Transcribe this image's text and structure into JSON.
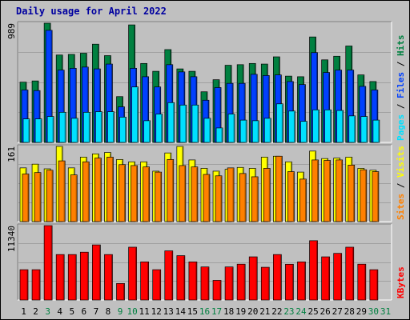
{
  "title": "Daily usage for April 2022",
  "colors": {
    "background": "#c0c0c0",
    "title": "#0000a0",
    "hits": "#008040",
    "files": "#0040ff",
    "pages": "#00e0ff",
    "visits": "#ffff00",
    "sites": "#ff8000",
    "kbytes": "#ff0000",
    "day_weekday": "#000000",
    "day_weekend": "#008040"
  },
  "chart_data": [
    {
      "type": "bar",
      "name": "hits-files-pages",
      "ymax_label": "989",
      "ylim": [
        0,
        989
      ],
      "legend_labels": [
        "Pages",
        "Files",
        "Hits"
      ],
      "categories": [
        "1",
        "2",
        "3",
        "4",
        "5",
        "6",
        "7",
        "8",
        "9",
        "10",
        "11",
        "12",
        "13",
        "14",
        "15",
        "16",
        "17",
        "18",
        "19",
        "20",
        "21",
        "22",
        "23",
        "24",
        "25",
        "26",
        "27",
        "28",
        "29",
        "30",
        "31"
      ],
      "series": [
        {
          "name": "Hits",
          "values": [
            500,
            510,
            989,
            725,
            730,
            740,
            815,
            720,
            380,
            975,
            655,
            590,
            770,
            610,
            590,
            420,
            520,
            640,
            645,
            655,
            650,
            710,
            550,
            545,
            875,
            685,
            715,
            800,
            560,
            505,
            0
          ]
        },
        {
          "name": "Files",
          "values": [
            435,
            430,
            930,
            600,
            615,
            625,
            610,
            650,
            295,
            615,
            545,
            460,
            645,
            585,
            545,
            350,
            455,
            490,
            490,
            565,
            555,
            560,
            505,
            480,
            745,
            580,
            600,
            600,
            465,
            435,
            0
          ]
        },
        {
          "name": "Pages",
          "values": [
            195,
            195,
            215,
            250,
            200,
            250,
            255,
            255,
            210,
            460,
            180,
            235,
            330,
            310,
            310,
            200,
            120,
            235,
            185,
            180,
            200,
            320,
            260,
            175,
            270,
            270,
            265,
            220,
            215,
            185,
            0
          ]
        }
      ]
    },
    {
      "type": "bar",
      "name": "visits-sites",
      "ymax_label": "161",
      "ylim": [
        0,
        161
      ],
      "legend_labels": [
        "Sites",
        "Visits"
      ],
      "categories": [
        "1",
        "2",
        "3",
        "4",
        "5",
        "6",
        "7",
        "8",
        "9",
        "10",
        "11",
        "12",
        "13",
        "14",
        "15",
        "16",
        "17",
        "18",
        "19",
        "20",
        "21",
        "22",
        "23",
        "24",
        "25",
        "26",
        "27",
        "28",
        "29",
        "30",
        "31"
      ],
      "series": [
        {
          "name": "Visits",
          "values": [
            115,
            123,
            113,
            161,
            115,
            138,
            145,
            148,
            133,
            128,
            128,
            108,
            147,
            161,
            132,
            114,
            108,
            112,
            116,
            114,
            138,
            140,
            128,
            106,
            151,
            135,
            136,
            138,
            114,
            110,
            0
          ]
        },
        {
          "name": "Sites",
          "values": [
            102,
            105,
            110,
            130,
            100,
            128,
            136,
            138,
            122,
            120,
            117,
            106,
            133,
            120,
            117,
            101,
            98,
            115,
            103,
            96,
            114,
            140,
            107,
            91,
            132,
            131,
            132,
            121,
            111,
            107,
            0
          ]
        }
      ]
    },
    {
      "type": "bar",
      "name": "kbytes",
      "ymax_label": "11340",
      "ylim": [
        0,
        11340
      ],
      "legend_labels": [
        "KBytes"
      ],
      "categories": [
        "1",
        "2",
        "3",
        "4",
        "5",
        "6",
        "7",
        "8",
        "9",
        "10",
        "11",
        "12",
        "13",
        "14",
        "15",
        "16",
        "17",
        "18",
        "19",
        "20",
        "21",
        "22",
        "23",
        "24",
        "25",
        "26",
        "27",
        "28",
        "29",
        "30",
        "31"
      ],
      "series": [
        {
          "name": "KBytes",
          "values": [
            4620,
            4620,
            11340,
            6930,
            6930,
            7290,
            8400,
            6930,
            2520,
            8050,
            5810,
            4620,
            7490,
            6760,
            5810,
            5040,
            2990,
            5040,
            5460,
            6580,
            4990,
            6930,
            5450,
            5810,
            9040,
            6580,
            7110,
            8050,
            5460,
            4620,
            0
          ]
        }
      ]
    }
  ],
  "days": [
    {
      "label": "1",
      "weekend": false
    },
    {
      "label": "2",
      "weekend": false
    },
    {
      "label": "3",
      "weekend": true
    },
    {
      "label": "4",
      "weekend": false
    },
    {
      "label": "5",
      "weekend": false
    },
    {
      "label": "6",
      "weekend": false
    },
    {
      "label": "7",
      "weekend": false
    },
    {
      "label": "8",
      "weekend": false
    },
    {
      "label": "9",
      "weekend": true
    },
    {
      "label": "10",
      "weekend": true
    },
    {
      "label": "11",
      "weekend": false
    },
    {
      "label": "12",
      "weekend": false
    },
    {
      "label": "13",
      "weekend": false
    },
    {
      "label": "14",
      "weekend": false
    },
    {
      "label": "15",
      "weekend": false
    },
    {
      "label": "16",
      "weekend": true
    },
    {
      "label": "17",
      "weekend": true
    },
    {
      "label": "18",
      "weekend": false
    },
    {
      "label": "19",
      "weekend": false
    },
    {
      "label": "20",
      "weekend": false
    },
    {
      "label": "21",
      "weekend": false
    },
    {
      "label": "22",
      "weekend": false
    },
    {
      "label": "23",
      "weekend": true
    },
    {
      "label": "24",
      "weekend": true
    },
    {
      "label": "25",
      "weekend": false
    },
    {
      "label": "26",
      "weekend": false
    },
    {
      "label": "27",
      "weekend": false
    },
    {
      "label": "28",
      "weekend": false
    },
    {
      "label": "29",
      "weekend": false
    },
    {
      "label": "30",
      "weekend": true
    },
    {
      "label": "31",
      "weekend": true
    }
  ]
}
